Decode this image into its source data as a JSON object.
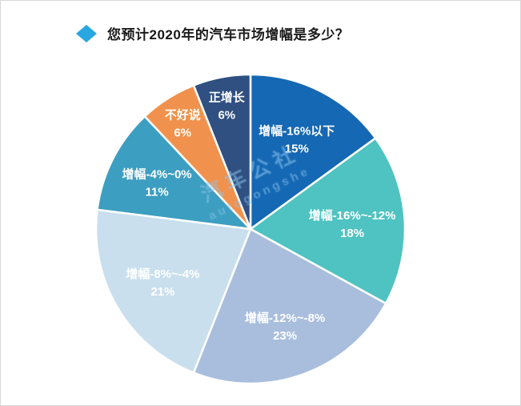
{
  "title": "您预计2020年的汽车市场增幅是多少？",
  "watermark": {
    "line1": "汽车公社",
    "line2": "autogongshe"
  },
  "colors": {
    "accent": "#29a7e0",
    "background": "#ffffff",
    "border": "#d8d8d8",
    "label_text": "#ffffff"
  },
  "chart_data": {
    "type": "pie",
    "title": "您预计2020年的汽车市场增幅是多少？",
    "start_angle_deg": 0,
    "direction": "clockwise",
    "legend": "none",
    "labels_inside": true,
    "slices": [
      {
        "label": "增幅-16%以下",
        "value": 15,
        "display": "15%",
        "color": "#1568b3"
      },
      {
        "label": "增幅-16%~-12%",
        "value": 18,
        "display": "18%",
        "color": "#4fc3c1"
      },
      {
        "label": "增幅-12%~-8%",
        "value": 23,
        "display": "23%",
        "color": "#a9bedd"
      },
      {
        "label": "增幅-8%~-4%",
        "value": 21,
        "display": "21%",
        "color": "#c9dfee"
      },
      {
        "label": "增幅-4%~0%",
        "value": 11,
        "display": "11%",
        "color": "#3c9ec0"
      },
      {
        "label": "不好说",
        "value": 6,
        "display": "6%",
        "color": "#f0924d"
      },
      {
        "label": "正增长",
        "value": 6,
        "display": "6%",
        "color": "#2f5080"
      }
    ]
  }
}
